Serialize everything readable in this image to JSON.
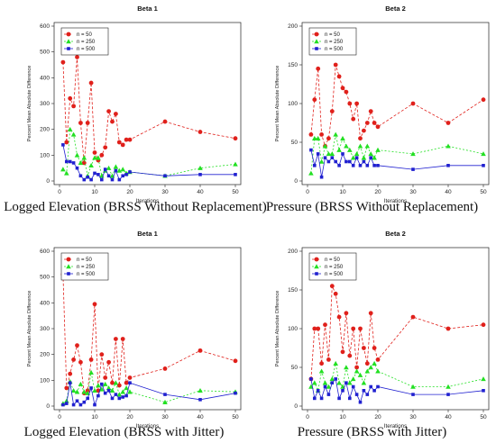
{
  "chart_data": [
    {
      "type": "line",
      "title": "Beta 1",
      "xlabel": "Iterations",
      "ylabel": "Percent Mean Absolute Difference",
      "caption": "Logged Elevation (BRSS Without Replacement)",
      "xlim": [
        0,
        50
      ],
      "ylim": [
        0,
        600
      ],
      "xticks": [
        0,
        10,
        20,
        30,
        40,
        50
      ],
      "yticks": [
        0,
        100,
        200,
        300,
        400,
        500,
        600
      ],
      "legend": "top-left",
      "grid": false,
      "x": [
        1,
        2,
        3,
        4,
        5,
        6,
        7,
        8,
        9,
        10,
        11,
        12,
        13,
        14,
        15,
        16,
        17,
        18,
        19,
        20,
        30,
        40,
        50
      ],
      "series": [
        {
          "name": "n = 50",
          "color": "#e0201b",
          "marker": "circle",
          "values": [
            460,
            150,
            320,
            290,
            480,
            225,
            70,
            225,
            380,
            110,
            80,
            100,
            130,
            270,
            230,
            260,
            150,
            140,
            160,
            160,
            230,
            190,
            165
          ]
        },
        {
          "name": "n = 250",
          "color": "#22e022",
          "marker": "triangle",
          "values": [
            45,
            30,
            200,
            180,
            100,
            70,
            90,
            20,
            60,
            90,
            90,
            20,
            40,
            50,
            20,
            55,
            40,
            45,
            30,
            35,
            20,
            50,
            65
          ]
        },
        {
          "name": "n = 500",
          "color": "#2020d0",
          "marker": "square",
          "values": [
            140,
            75,
            75,
            70,
            50,
            20,
            5,
            15,
            5,
            30,
            25,
            5,
            45,
            20,
            5,
            40,
            5,
            20,
            25,
            35,
            20,
            25,
            25
          ]
        }
      ]
    },
    {
      "type": "line",
      "title": "Beta 2",
      "xlabel": "Iterations",
      "ylabel": "Percent Mean Absolute Difference",
      "caption": "Pressure (BRSS Without Replacement)",
      "xlim": [
        0,
        50
      ],
      "ylim": [
        0,
        200
      ],
      "xticks": [
        0,
        10,
        20,
        30,
        40,
        50
      ],
      "yticks": [
        0,
        50,
        100,
        150,
        200
      ],
      "legend": "top-left",
      "grid": false,
      "x": [
        1,
        2,
        3,
        4,
        5,
        6,
        7,
        8,
        9,
        10,
        11,
        12,
        13,
        14,
        15,
        16,
        17,
        18,
        19,
        20,
        30,
        40,
        50
      ],
      "series": [
        {
          "name": "n = 50",
          "color": "#e0201b",
          "marker": "circle",
          "values": [
            60,
            105,
            145,
            60,
            45,
            55,
            90,
            150,
            135,
            120,
            115,
            100,
            80,
            100,
            55,
            65,
            75,
            90,
            75,
            70,
            100,
            75,
            105
          ]
        },
        {
          "name": "n = 250",
          "color": "#22e022",
          "marker": "triangle",
          "values": [
            10,
            55,
            55,
            25,
            45,
            35,
            35,
            60,
            40,
            55,
            45,
            40,
            30,
            35,
            45,
            30,
            45,
            35,
            30,
            40,
            35,
            45,
            35
          ]
        },
        {
          "name": "n = 500",
          "color": "#2020d0",
          "marker": "square",
          "values": [
            40,
            20,
            35,
            5,
            30,
            25,
            30,
            25,
            20,
            35,
            25,
            25,
            20,
            30,
            20,
            25,
            20,
            30,
            20,
            20,
            15,
            20,
            20
          ]
        }
      ]
    },
    {
      "type": "line",
      "title": "Beta 1",
      "xlabel": "Iterations",
      "ylabel": "Percent Mean Absolute Difference",
      "caption": "Logged Elevation (BRSS with Jitter)",
      "xlim": [
        0,
        50
      ],
      "ylim": [
        0,
        600
      ],
      "xticks": [
        0,
        10,
        20,
        30,
        40,
        50
      ],
      "yticks": [
        0,
        100,
        200,
        300,
        400,
        500,
        600
      ],
      "legend": "top-left",
      "grid": false,
      "x": [
        1,
        2,
        3,
        4,
        5,
        6,
        7,
        8,
        9,
        10,
        11,
        12,
        13,
        14,
        15,
        16,
        17,
        18,
        19,
        20,
        30,
        40,
        50
      ],
      "series": [
        {
          "name": "n = 50",
          "color": "#e0201b",
          "marker": "circle",
          "values": [
            510,
            70,
            125,
            180,
            235,
            170,
            50,
            60,
            180,
            395,
            60,
            200,
            110,
            170,
            90,
            260,
            80,
            260,
            90,
            110,
            145,
            215,
            175
          ]
        },
        {
          "name": "n = 250",
          "color": "#22e022",
          "marker": "triangle",
          "values": [
            10,
            20,
            95,
            60,
            55,
            85,
            55,
            50,
            130,
            60,
            80,
            65,
            85,
            70,
            60,
            90,
            45,
            55,
            70,
            55,
            15,
            60,
            55
          ]
        },
        {
          "name": "n = 500",
          "color": "#2020d0",
          "marker": "square",
          "values": [
            5,
            10,
            90,
            5,
            20,
            5,
            15,
            30,
            70,
            5,
            40,
            85,
            50,
            60,
            30,
            45,
            30,
            35,
            40,
            90,
            45,
            25,
            50
          ]
        }
      ]
    },
    {
      "type": "line",
      "title": "Beta 2",
      "xlabel": "Iterations",
      "ylabel": "Percent Mean Absolute Difference",
      "caption": "Pressure (BRSS with Jitter)",
      "xlim": [
        0,
        50
      ],
      "ylim": [
        0,
        200
      ],
      "xticks": [
        0,
        10,
        20,
        30,
        40,
        50
      ],
      "yticks": [
        0,
        50,
        100,
        150,
        200
      ],
      "legend": "top-left",
      "grid": false,
      "x": [
        1,
        2,
        3,
        4,
        5,
        6,
        7,
        8,
        9,
        10,
        11,
        12,
        13,
        14,
        15,
        16,
        17,
        18,
        19,
        20,
        30,
        40,
        50
      ],
      "series": [
        {
          "name": "n = 50",
          "color": "#e0201b",
          "marker": "circle",
          "values": [
            35,
            100,
            100,
            55,
            105,
            60,
            155,
            145,
            115,
            70,
            120,
            65,
            100,
            50,
            100,
            75,
            55,
            120,
            75,
            60,
            115,
            100,
            105
          ]
        },
        {
          "name": "n = 250",
          "color": "#22e022",
          "marker": "triangle",
          "values": [
            25,
            30,
            20,
            45,
            30,
            25,
            35,
            55,
            30,
            25,
            50,
            30,
            35,
            45,
            40,
            30,
            45,
            50,
            55,
            45,
            25,
            25,
            35
          ]
        },
        {
          "name": "n = 500",
          "color": "#2020d0",
          "marker": "square",
          "values": [
            35,
            10,
            20,
            10,
            25,
            15,
            30,
            35,
            10,
            20,
            30,
            10,
            25,
            15,
            5,
            20,
            15,
            25,
            20,
            25,
            15,
            15,
            20
          ]
        }
      ]
    }
  ]
}
